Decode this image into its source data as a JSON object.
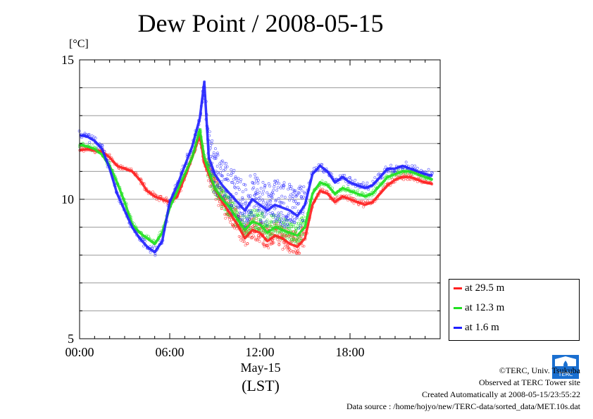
{
  "chart_data": {
    "type": "line",
    "title": "Dew Point / 2008-05-15",
    "ylabel": "[°C]",
    "xlabel_date": "May-15",
    "xlabel": "(LST)",
    "ylim": [
      5,
      15
    ],
    "yticks": [
      "5",
      "10",
      "15"
    ],
    "xlim_hours": [
      0,
      24
    ],
    "xticks": [
      "00:00",
      "06:00",
      "12:00",
      "18:00"
    ],
    "legend_position": "bottom-right",
    "x_hours": [
      0,
      0.5,
      1,
      1.5,
      2,
      2.5,
      3,
      3.5,
      4,
      4.5,
      5,
      5.5,
      6,
      6.5,
      7,
      7.5,
      8,
      8.3,
      8.6,
      9,
      9.5,
      10,
      10.5,
      11,
      11.5,
      12,
      12.5,
      13,
      13.5,
      14,
      14.5,
      15,
      15.5,
      16,
      16.5,
      17,
      17.5,
      18,
      18.5,
      19,
      19.5,
      20,
      20.5,
      21,
      21.5,
      22,
      22.5,
      23,
      23.5
    ],
    "series": [
      {
        "name": "at 29.5 m",
        "color": "#ff2020",
        "values": [
          11.75,
          11.8,
          11.75,
          11.7,
          11.5,
          11.2,
          11.1,
          11.0,
          10.7,
          10.3,
          10.1,
          10.0,
          9.9,
          10.1,
          10.8,
          11.5,
          12.3,
          11.3,
          10.9,
          10.4,
          9.9,
          9.5,
          9.1,
          8.6,
          8.9,
          8.8,
          8.5,
          8.7,
          8.6,
          8.4,
          8.3,
          8.6,
          9.8,
          10.3,
          10.2,
          9.9,
          10.1,
          10.0,
          9.9,
          9.8,
          9.9,
          10.2,
          10.5,
          10.7,
          10.8,
          10.8,
          10.7,
          10.6,
          10.55
        ]
      },
      {
        "name": "at 12.3 m",
        "color": "#20e020",
        "values": [
          11.95,
          11.9,
          11.8,
          11.6,
          11.2,
          10.6,
          9.9,
          9.1,
          8.8,
          8.6,
          8.4,
          8.8,
          9.7,
          10.3,
          10.9,
          11.5,
          12.5,
          11.5,
          11.0,
          10.4,
          10.0,
          9.7,
          9.3,
          8.9,
          9.2,
          9.1,
          8.8,
          9.0,
          8.9,
          8.8,
          8.7,
          9.0,
          10.2,
          10.6,
          10.5,
          10.2,
          10.4,
          10.3,
          10.2,
          10.1,
          10.2,
          10.5,
          10.8,
          10.9,
          11.0,
          11.0,
          10.9,
          10.8,
          10.7
        ]
      },
      {
        "name": "at 1.6 m",
        "color": "#2020ff",
        "values": [
          12.3,
          12.25,
          12.1,
          11.8,
          11.1,
          10.2,
          9.6,
          9.0,
          8.6,
          8.3,
          8.1,
          8.5,
          9.9,
          10.5,
          11.2,
          11.9,
          12.9,
          14.2,
          11.5,
          10.9,
          10.5,
          10.2,
          9.9,
          9.6,
          10.0,
          9.8,
          9.6,
          9.8,
          9.7,
          9.6,
          9.4,
          9.8,
          10.9,
          11.2,
          11.0,
          10.6,
          10.8,
          10.6,
          10.5,
          10.4,
          10.5,
          10.8,
          11.1,
          11.1,
          11.2,
          11.1,
          11.0,
          10.9,
          10.85
        ]
      }
    ]
  },
  "legend": {
    "items": [
      "at 29.5 m",
      "at 12.3 m",
      "at 1.6 m"
    ],
    "colors": [
      "#ff2020",
      "#20e020",
      "#2020ff"
    ]
  },
  "footer": {
    "copyright": "©TERC, Univ. Tsukuba",
    "observed": "Observed at TERC Tower site",
    "created": "Created Automatically at 2008-05-15/23:55:22",
    "source": "Data source : /home/hojyo/new/TERC-data/sorted_data/MET.10s.dat"
  },
  "logo": {
    "text": "TERC",
    "icon": "terc-logo-icon",
    "color": "#1a6fd0"
  }
}
